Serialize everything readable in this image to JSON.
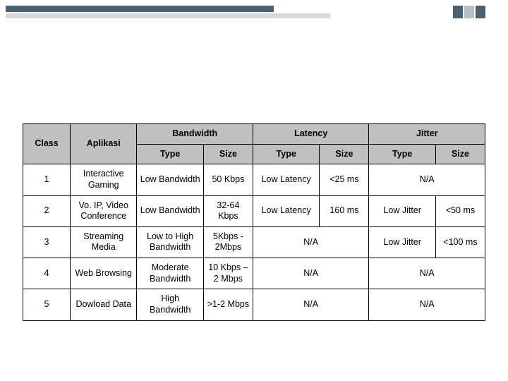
{
  "decoration": {
    "bar_dark_color": "#4a6170",
    "bar_light_color": "#d5d9dc",
    "rect_a_color": "#4a6170",
    "rect_b_color": "#b7bfc5"
  },
  "table": {
    "header_bg": "#c0c0c0",
    "border_color": "#000000",
    "font_size_pt": 12.5,
    "columns": {
      "class": "Class",
      "aplikasi": "Aplikasi",
      "bandwidth": "Bandwidth",
      "latency": "Latency",
      "jitter": "Jitter",
      "type": "Type",
      "size": "Size"
    },
    "rows": [
      {
        "class": "1",
        "aplikasi": "Interactive Gaming",
        "bw_type": "Low Bandwidth",
        "bw_size": "50 Kbps",
        "lat_type": "Low Latency",
        "lat_size": "<25 ms",
        "jit_type": null,
        "jit_size": null,
        "jit_merged": "N/A"
      },
      {
        "class": "2",
        "aplikasi": "Vo. IP, Video Conference",
        "bw_type": "Low Bandwidth",
        "bw_size": "32-64 Kbps",
        "lat_type": "Low Latency",
        "lat_size": "160 ms",
        "jit_type": "Low Jitter",
        "jit_size": "<50 ms",
        "jit_merged": null
      },
      {
        "class": "3",
        "aplikasi": "Streaming Media",
        "bw_type": "Low to High Bandwidth",
        "bw_size": "5Kbps - 2Mbps",
        "lat_type": null,
        "lat_size": null,
        "lat_merged": "N/A",
        "jit_type": "Low Jitter",
        "jit_size": "<100 ms",
        "jit_merged": null
      },
      {
        "class": "4",
        "aplikasi": "Web Browsing",
        "bw_type": "Moderate Bandwidth",
        "bw_size": "10 Kbps – 2 Mbps",
        "lat_type": null,
        "lat_size": null,
        "lat_merged": "N/A",
        "jit_type": null,
        "jit_size": null,
        "jit_merged": "N/A"
      },
      {
        "class": "5",
        "aplikasi": "Dowload Data",
        "bw_type": "High Bandwidth",
        "bw_size": ">1-2 Mbps",
        "lat_type": null,
        "lat_size": null,
        "lat_merged": "N/A",
        "jit_type": null,
        "jit_size": null,
        "jit_merged": "N/A"
      }
    ]
  }
}
